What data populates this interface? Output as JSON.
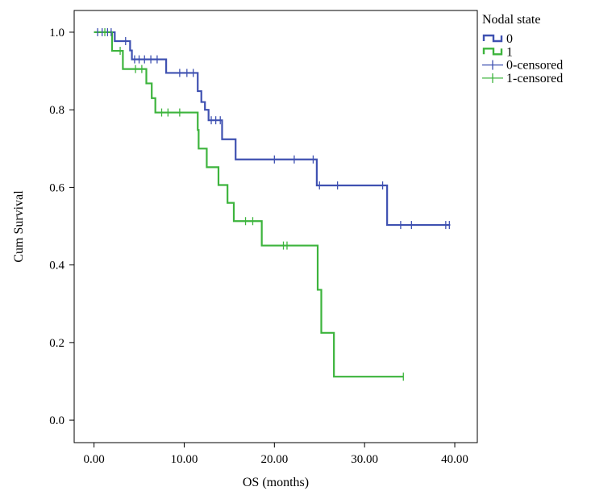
{
  "chart_data": {
    "type": "line",
    "xlabel": "OS (months)",
    "ylabel": "Cum Survival",
    "xlim": [
      -2.2,
      42.5
    ],
    "ylim": [
      -0.058,
      1.056
    ],
    "x_ticks": [
      0,
      10,
      20,
      30,
      40
    ],
    "x_tick_labels": [
      "0.00",
      "10.00",
      "20.00",
      "30.00",
      "40.00"
    ],
    "y_ticks": [
      0.0,
      0.2,
      0.4,
      0.6,
      0.8,
      1.0
    ],
    "y_tick_labels": [
      "0.0",
      "0.2",
      "0.4",
      "0.6",
      "0.8",
      "1.0"
    ],
    "grid": false,
    "legend": {
      "title": "Nodal state",
      "position": "outside-top-right",
      "entries": [
        {
          "label": "0",
          "kind": "line",
          "series": 0
        },
        {
          "label": "1",
          "kind": "line",
          "series": 1
        },
        {
          "label": "0-censored",
          "kind": "censor",
          "series": 0
        },
        {
          "label": "1-censored",
          "kind": "censor",
          "series": 1
        }
      ]
    },
    "series": [
      {
        "name": "0",
        "color": "#3f51b1",
        "steps": [
          [
            0,
            1.0
          ],
          [
            2.3,
            0.977
          ],
          [
            4.0,
            0.953
          ],
          [
            4.2,
            0.93
          ],
          [
            8.0,
            0.895
          ],
          [
            11.5,
            0.848
          ],
          [
            11.9,
            0.82
          ],
          [
            12.3,
            0.8
          ],
          [
            12.7,
            0.773
          ],
          [
            14.2,
            0.724
          ],
          [
            15.7,
            0.672
          ],
          [
            24.7,
            0.605
          ],
          [
            32.5,
            0.503
          ]
        ],
        "end_x": 39.5,
        "censored": [
          [
            0.4,
            1.0
          ],
          [
            0.9,
            1.0
          ],
          [
            1.5,
            1.0
          ],
          [
            1.9,
            1.0
          ],
          [
            3.5,
            0.977
          ],
          [
            4.5,
            0.93
          ],
          [
            5.0,
            0.93
          ],
          [
            5.6,
            0.93
          ],
          [
            6.3,
            0.93
          ],
          [
            7.0,
            0.93
          ],
          [
            9.5,
            0.895
          ],
          [
            10.3,
            0.895
          ],
          [
            11.0,
            0.895
          ],
          [
            13.0,
            0.773
          ],
          [
            13.5,
            0.773
          ],
          [
            14.0,
            0.773
          ],
          [
            20.0,
            0.672
          ],
          [
            22.2,
            0.672
          ],
          [
            24.3,
            0.672
          ],
          [
            25.0,
            0.605
          ],
          [
            27.0,
            0.605
          ],
          [
            32.0,
            0.605
          ],
          [
            34.0,
            0.503
          ],
          [
            35.2,
            0.503
          ],
          [
            39.0,
            0.503
          ],
          [
            39.4,
            0.503
          ]
        ]
      },
      {
        "name": "1",
        "color": "#3db43d",
        "steps": [
          [
            0,
            1.0
          ],
          [
            2.0,
            0.952
          ],
          [
            3.2,
            0.905
          ],
          [
            5.8,
            0.868
          ],
          [
            6.4,
            0.83
          ],
          [
            6.8,
            0.793
          ],
          [
            11.5,
            0.748
          ],
          [
            11.6,
            0.7
          ],
          [
            12.5,
            0.652
          ],
          [
            13.8,
            0.606
          ],
          [
            14.8,
            0.56
          ],
          [
            15.5,
            0.513
          ],
          [
            18.6,
            0.45
          ],
          [
            24.8,
            0.336
          ],
          [
            25.2,
            0.225
          ],
          [
            26.6,
            0.112
          ]
        ],
        "end_x": 34.3,
        "censored": [
          [
            1.2,
            1.0
          ],
          [
            2.9,
            0.952
          ],
          [
            4.6,
            0.905
          ],
          [
            5.3,
            0.905
          ],
          [
            7.5,
            0.793
          ],
          [
            8.2,
            0.793
          ],
          [
            9.5,
            0.793
          ],
          [
            16.8,
            0.513
          ],
          [
            17.6,
            0.513
          ],
          [
            21.0,
            0.45
          ],
          [
            21.4,
            0.45
          ],
          [
            34.3,
            0.112
          ]
        ]
      }
    ]
  }
}
